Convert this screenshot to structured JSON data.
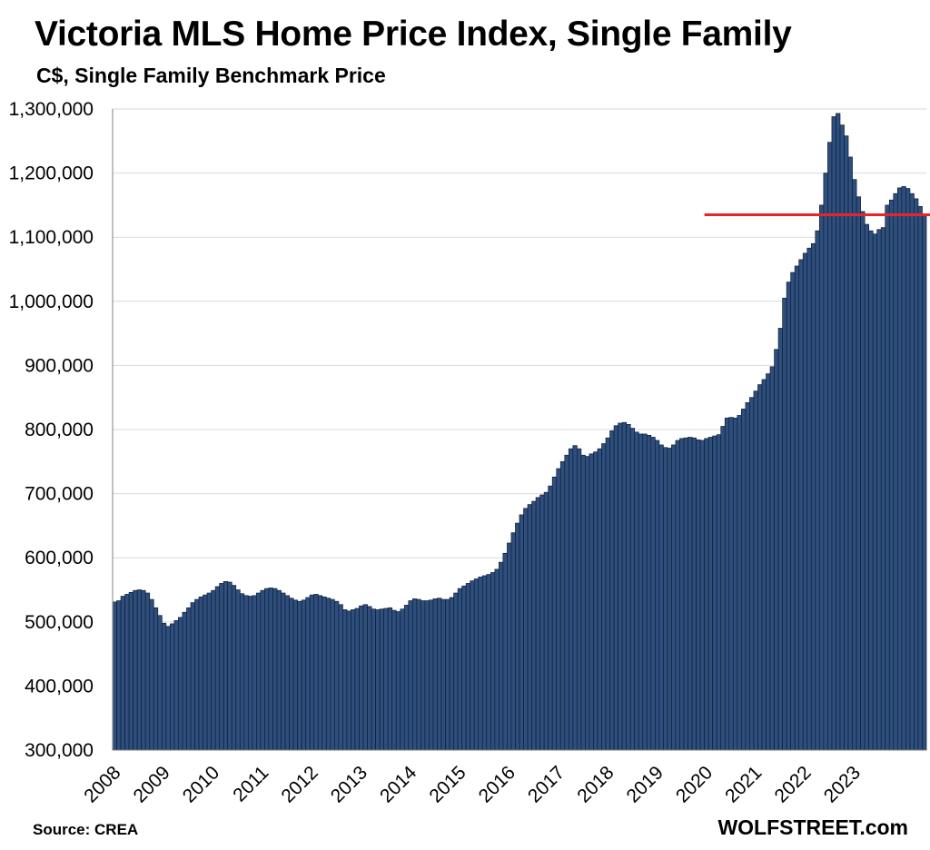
{
  "title": "Victoria MLS Home Price Index, Single Family",
  "subtitle": "C$, Single Family Benchmark Price",
  "source": "Source: CREA",
  "brand": "WOLFSTREET.com",
  "colors": {
    "bar_fill": "#2e4f7e",
    "bar_stroke": "#0f1e33",
    "reference_line": "#e8232a",
    "grid": "#d9d9d9"
  },
  "chart_data": {
    "type": "bar",
    "title": "Victoria MLS Home Price Index, Single Family",
    "subtitle": "C$, Single Family Benchmark Price",
    "xlabel": "",
    "ylabel": "",
    "ylim": [
      300000,
      1300000
    ],
    "y_ticks": [
      300000,
      400000,
      500000,
      600000,
      700000,
      800000,
      900000,
      1000000,
      1100000,
      1200000,
      1300000
    ],
    "y_tick_labels": [
      "300,000",
      "400,000",
      "500,000",
      "600,000",
      "700,000",
      "800,000",
      "900,000",
      "1,000,000",
      "1,100,000",
      "1,200,000",
      "1,300,000"
    ],
    "x_tick_labels": [
      "2008",
      "2009",
      "2010",
      "2011",
      "2012",
      "2013",
      "2014",
      "2015",
      "2016",
      "2017",
      "2018",
      "2019",
      "2020",
      "2021",
      "2022",
      "2023"
    ],
    "grid": true,
    "legend": "none",
    "reference_line": {
      "value": 1135000,
      "start": "2020-01"
    },
    "start_month": "2008-01",
    "values": [
      531000,
      533000,
      540000,
      543000,
      546000,
      549000,
      550000,
      549000,
      545000,
      535000,
      522000,
      510000,
      498000,
      493000,
      497000,
      502000,
      507000,
      515000,
      522000,
      530000,
      535000,
      539000,
      542000,
      545000,
      549000,
      555000,
      560000,
      563000,
      562000,
      557000,
      550000,
      544000,
      541000,
      540000,
      541000,
      545000,
      549000,
      552000,
      553000,
      552000,
      549000,
      545000,
      541000,
      537000,
      534000,
      532000,
      534000,
      538000,
      542000,
      543000,
      541000,
      539000,
      537000,
      535000,
      532000,
      527000,
      519000,
      517000,
      519000,
      521000,
      525000,
      527000,
      524000,
      520000,
      519000,
      520000,
      521000,
      522000,
      518000,
      516000,
      520000,
      526000,
      533000,
      536000,
      535000,
      533000,
      533000,
      534000,
      536000,
      537000,
      535000,
      535000,
      538000,
      545000,
      552000,
      556000,
      560000,
      564000,
      567000,
      570000,
      572000,
      574000,
      577000,
      582000,
      593000,
      607000,
      623000,
      639000,
      654000,
      667000,
      677000,
      683000,
      688000,
      694000,
      698000,
      702000,
      712000,
      726000,
      739000,
      750000,
      760000,
      770000,
      775000,
      770000,
      760000,
      758000,
      762000,
      765000,
      770000,
      778000,
      787000,
      798000,
      806000,
      810000,
      811000,
      808000,
      802000,
      796000,
      793000,
      793000,
      791000,
      788000,
      783000,
      776000,
      772000,
      771000,
      776000,
      783000,
      786000,
      787000,
      788000,
      787000,
      784000,
      783000,
      786000,
      788000,
      790000,
      792000,
      805000,
      818000,
      819000,
      818000,
      822000,
      832000,
      842000,
      850000,
      860000,
      870000,
      878000,
      887000,
      898000,
      925000,
      958000,
      1005000,
      1030000,
      1045000,
      1055000,
      1065000,
      1075000,
      1083000,
      1090000,
      1110000,
      1150000,
      1200000,
      1248000,
      1288000,
      1293000,
      1275000,
      1258000,
      1225000,
      1190000,
      1163000,
      1140000,
      1120000,
      1110000,
      1105000,
      1112000,
      1115000,
      1150000,
      1158000,
      1168000,
      1177000,
      1179000,
      1176000,
      1168000,
      1160000,
      1148000,
      1135000
    ]
  }
}
